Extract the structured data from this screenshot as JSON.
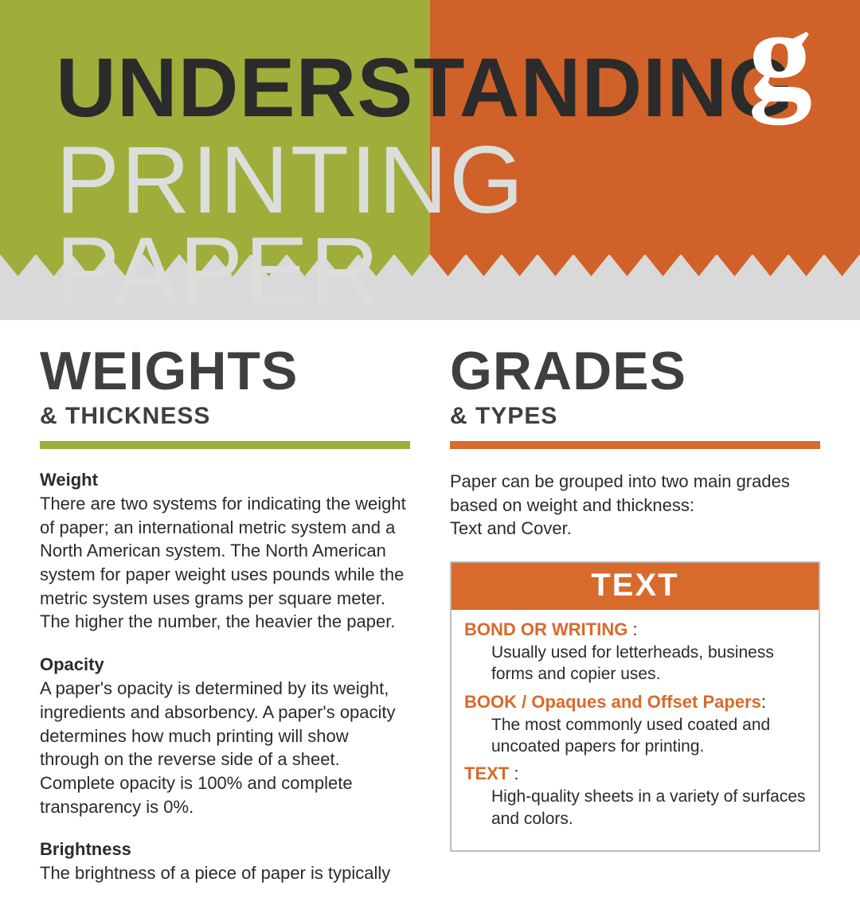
{
  "colors": {
    "olive": "#a0ad3a",
    "orange": "#d06128",
    "orange_bright": "#d86a2c",
    "gray_band": "#d9d9d9",
    "dark_text": "#3f3f3f",
    "title_black": "#2b2b2b",
    "title_light": "#dcdedb",
    "white": "#ffffff",
    "body_text": "#2b2b2b",
    "box_border": "#bcbcbc"
  },
  "header": {
    "line1": "UNDERSTANDING",
    "line2": "PRINTING PAPER",
    "logo_glyph": "g"
  },
  "left": {
    "big": "WEIGHTS",
    "small": "& THICKNESS",
    "sections": [
      {
        "title": "Weight",
        "body": "There are two systems for indicating the weight of paper; an international metric system and a North American system. The North American system for paper weight uses pounds while the metric system uses grams per square meter. The higher the number, the heavier the paper."
      },
      {
        "title": "Opacity",
        "body": "A paper's opacity is determined by its weight, ingredients and absorbency. A paper's opacity determines how much printing will show through on the reverse side of a sheet. Complete opacity is 100% and complete transparency is 0%."
      },
      {
        "title": "Brightness",
        "body": "The brightness of a piece of paper is typically"
      }
    ]
  },
  "right": {
    "big": "GRADES",
    "small": "& TYPES",
    "intro": "Paper can be grouped into two main grades based on weight and thickness:\nText and Cover.",
    "box_title": "TEXT",
    "entries": [
      {
        "label": "BOND OR WRITING",
        "colon": " :",
        "desc": "Usually used for letterheads, business forms and copier uses."
      },
      {
        "label": "BOOK / Opaques and Offset Papers",
        "colon": ":",
        "desc": "The most commonly used coated and uncoated papers for printing."
      },
      {
        "label": "TEXT",
        "colon": " :",
        "desc": "High-quality sheets in a variety of surfaces and colors."
      }
    ]
  }
}
